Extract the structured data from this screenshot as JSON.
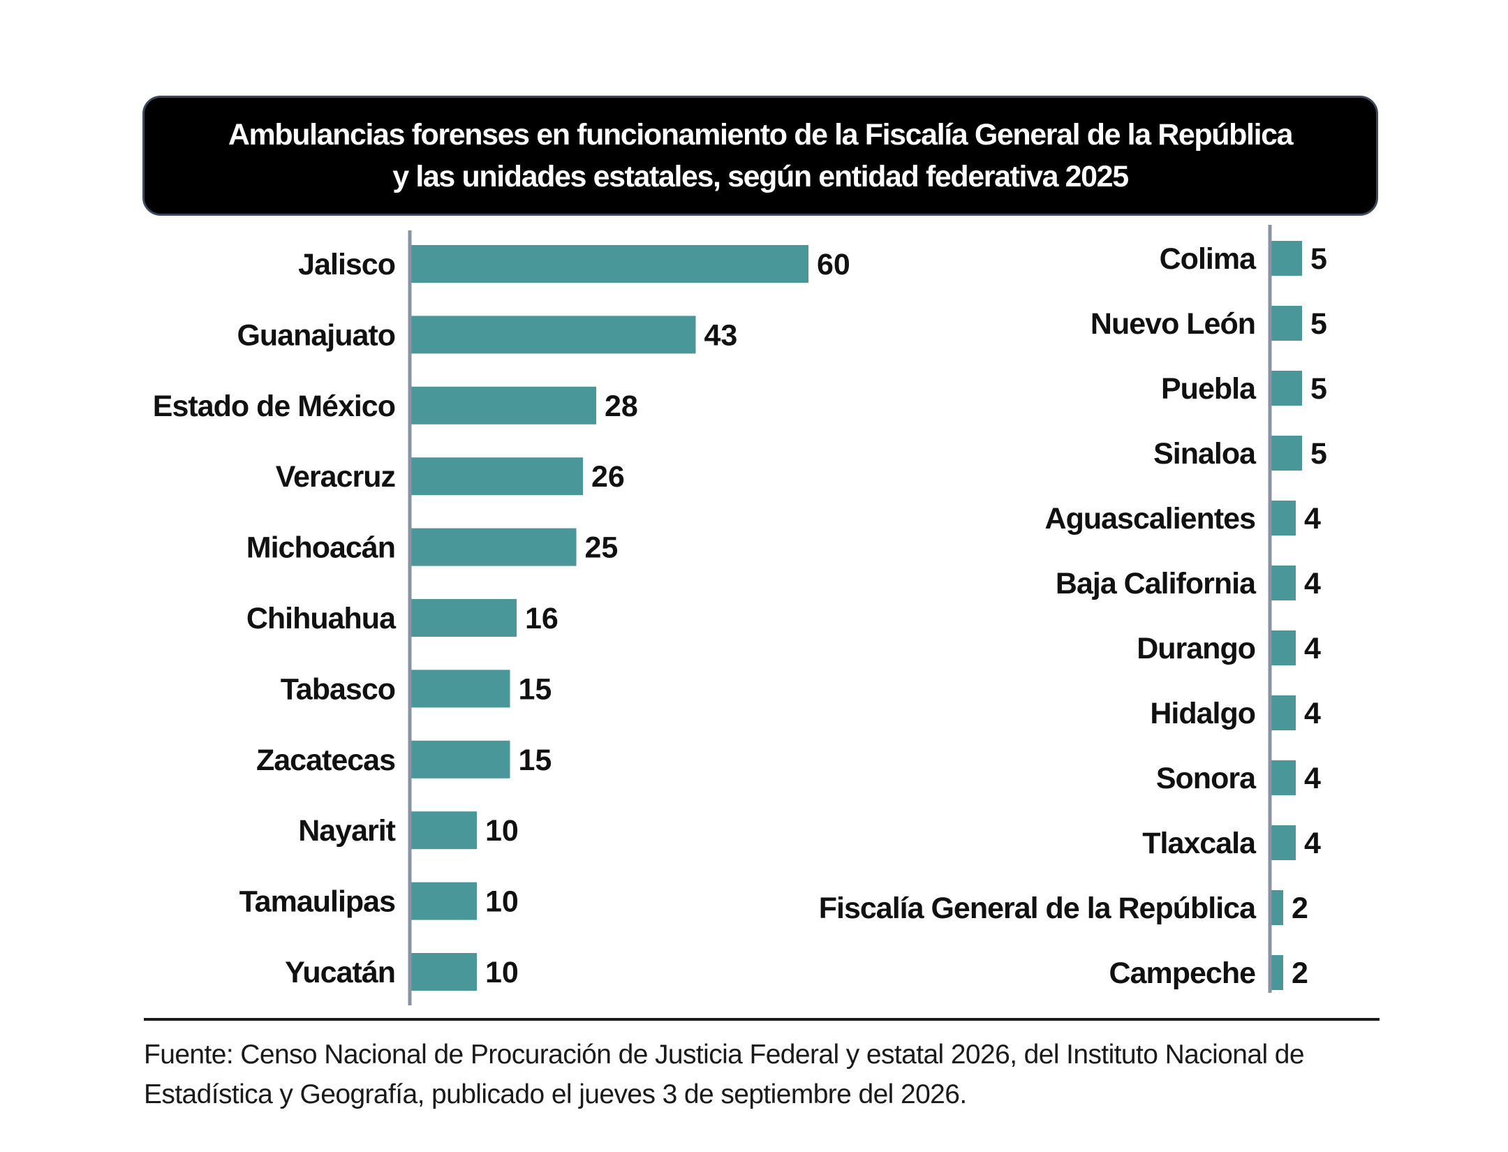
{
  "title": {
    "line1": "Ambulancias forenses en funcionamiento de la Fiscalía General de la República",
    "line2": "y las unidades estatales, según entidad federativa 2025"
  },
  "source": {
    "line1": "Fuente: Censo Nacional de Procuración de Justicia Federal y estatal 2026, del Instituto Nacional de",
    "line2": "Estadística y Geografía, publicado el jueves 3 de septiembre del 2026."
  },
  "colors": {
    "bar": "#4a979a",
    "axis": "#8a93a3",
    "title_bg": "#000000"
  },
  "chart_data": [
    {
      "type": "bar",
      "orientation": "horizontal",
      "title": "Ambulancias forenses en funcionamiento de la Fiscalía General de la República y las unidades estatales, según entidad federativa 2025",
      "categories": [
        "Jalisco",
        "Guanajuato",
        "Estado de México",
        "Veracruz",
        "Michoacán",
        "Chihuahua",
        "Tabasco",
        "Zacatecas",
        "Nayarit",
        "Tamaulipas",
        "Yucatán"
      ],
      "values": [
        60,
        43,
        28,
        26,
        25,
        16,
        15,
        15,
        10,
        10,
        10
      ],
      "xlim": [
        0,
        60
      ],
      "grid": false,
      "data_labels": true
    },
    {
      "type": "bar",
      "orientation": "horizontal",
      "categories": [
        "Colima",
        "Nuevo León",
        "Puebla",
        "Sinaloa",
        "Aguascalientes",
        "Baja California",
        "Durango",
        "Hidalgo",
        "Sonora",
        "Tlaxcala",
        "Fiscalía General de la República",
        "Campeche"
      ],
      "values": [
        5,
        5,
        5,
        5,
        4,
        4,
        4,
        4,
        4,
        4,
        2,
        2
      ],
      "xlim": [
        0,
        60
      ],
      "grid": false,
      "data_labels": true
    }
  ]
}
